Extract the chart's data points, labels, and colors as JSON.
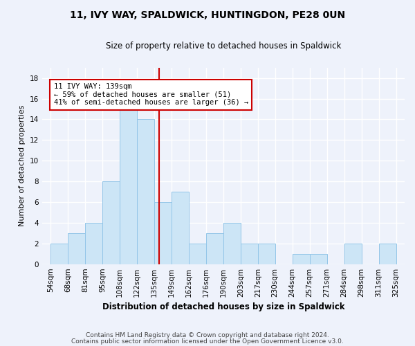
{
  "title": "11, IVY WAY, SPALDWICK, HUNTINGDON, PE28 0UN",
  "subtitle": "Size of property relative to detached houses in Spaldwick",
  "xlabel": "Distribution of detached houses by size in Spaldwick",
  "ylabel": "Number of detached properties",
  "footer_line1": "Contains HM Land Registry data © Crown copyright and database right 2024.",
  "footer_line2": "Contains public sector information licensed under the Open Government Licence v3.0.",
  "bin_labels": [
    "54sqm",
    "68sqm",
    "81sqm",
    "95sqm",
    "108sqm",
    "122sqm",
    "135sqm",
    "149sqm",
    "162sqm",
    "176sqm",
    "190sqm",
    "203sqm",
    "217sqm",
    "230sqm",
    "244sqm",
    "257sqm",
    "271sqm",
    "284sqm",
    "298sqm",
    "311sqm",
    "325sqm"
  ],
  "bar_heights": [
    2,
    3,
    4,
    8,
    15,
    14,
    6,
    7,
    2,
    3,
    4,
    2,
    2,
    0,
    1,
    1,
    0,
    2,
    0,
    2
  ],
  "ylim": [
    0,
    19
  ],
  "yticks": [
    0,
    2,
    4,
    6,
    8,
    10,
    12,
    14,
    16,
    18
  ],
  "annotation_line1": "11 IVY WAY: 139sqm",
  "annotation_line2": "← 59% of detached houses are smaller (51)",
  "annotation_line3": "41% of semi-detached houses are larger (36) →",
  "bar_color": "#cce5f6",
  "bar_edge_color": "#93c5e8",
  "property_line_color": "#cc0000",
  "annotation_box_edge": "#cc0000",
  "background_color": "#eef2fb",
  "grid_color": "#ffffff",
  "title_fontsize": 10,
  "subtitle_fontsize": 8.5,
  "tick_fontsize": 7.5,
  "ylabel_fontsize": 8,
  "xlabel_fontsize": 8.5,
  "footer_fontsize": 6.5
}
